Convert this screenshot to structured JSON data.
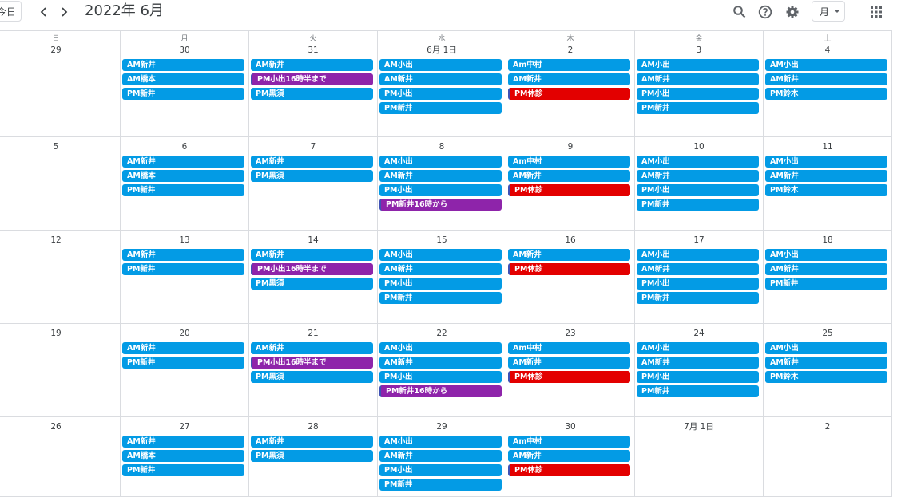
{
  "header": {
    "today_label": "今日",
    "prev_icon": "chevron-left-icon",
    "next_icon": "chevron-right-icon",
    "title": "2022年 6月",
    "view_label": "月",
    "icons": [
      "search-icon",
      "help-icon",
      "settings-icon",
      "apps-grid-icon"
    ]
  },
  "colors": {
    "blue": "#039be5",
    "purple": "#8e24aa",
    "red": "#e30000",
    "border": "#dadce0"
  },
  "weekdays": [
    "日",
    "月",
    "火",
    "水",
    "木",
    "金",
    "土"
  ],
  "weeks": [
    [
      {
        "date": "29",
        "events": []
      },
      {
        "date": "30",
        "events": [
          {
            "t": "AM新井",
            "c": "blue"
          },
          {
            "t": "AM橋本",
            "c": "blue"
          },
          {
            "t": "PM新井",
            "c": "blue"
          }
        ]
      },
      {
        "date": "31",
        "events": [
          {
            "t": "AM新井",
            "c": "blue"
          },
          {
            "t": "PM小出16時半まで",
            "c": "purple"
          },
          {
            "t": "PM黒須",
            "c": "blue"
          }
        ]
      },
      {
        "date": "6月 1日",
        "events": [
          {
            "t": "AM小出",
            "c": "blue"
          },
          {
            "t": "AM新井",
            "c": "blue"
          },
          {
            "t": "PM小出",
            "c": "blue"
          },
          {
            "t": "PM新井",
            "c": "blue"
          }
        ]
      },
      {
        "date": "2",
        "events": [
          {
            "t": "Am中村",
            "c": "blue"
          },
          {
            "t": "AM新井",
            "c": "blue"
          },
          {
            "t": "PM休診",
            "c": "red"
          }
        ]
      },
      {
        "date": "3",
        "events": [
          {
            "t": "AM小出",
            "c": "blue"
          },
          {
            "t": "AM新井",
            "c": "blue"
          },
          {
            "t": "PM小出",
            "c": "blue"
          },
          {
            "t": "PM新井",
            "c": "blue"
          }
        ]
      },
      {
        "date": "4",
        "events": [
          {
            "t": "AM小出",
            "c": "blue"
          },
          {
            "t": "AM新井",
            "c": "blue"
          },
          {
            "t": "PM鈴木",
            "c": "blue"
          }
        ]
      }
    ],
    [
      {
        "date": "5",
        "events": []
      },
      {
        "date": "6",
        "events": [
          {
            "t": "AM新井",
            "c": "blue"
          },
          {
            "t": "AM橋本",
            "c": "blue"
          },
          {
            "t": "PM新井",
            "c": "blue"
          }
        ]
      },
      {
        "date": "7",
        "events": [
          {
            "t": "AM新井",
            "c": "blue"
          },
          {
            "t": "PM黒須",
            "c": "blue"
          }
        ]
      },
      {
        "date": "8",
        "events": [
          {
            "t": "AM小出",
            "c": "blue"
          },
          {
            "t": "AM新井",
            "c": "blue"
          },
          {
            "t": "PM小出",
            "c": "blue"
          },
          {
            "t": "PM新井16時から",
            "c": "purple"
          }
        ]
      },
      {
        "date": "9",
        "events": [
          {
            "t": "Am中村",
            "c": "blue"
          },
          {
            "t": "AM新井",
            "c": "blue"
          },
          {
            "t": "PM休診",
            "c": "red"
          }
        ]
      },
      {
        "date": "10",
        "events": [
          {
            "t": "AM小出",
            "c": "blue"
          },
          {
            "t": "AM新井",
            "c": "blue"
          },
          {
            "t": "PM小出",
            "c": "blue"
          },
          {
            "t": "PM新井",
            "c": "blue"
          }
        ]
      },
      {
        "date": "11",
        "events": [
          {
            "t": "AM小出",
            "c": "blue"
          },
          {
            "t": "AM新井",
            "c": "blue"
          },
          {
            "t": "PM鈴木",
            "c": "blue"
          }
        ]
      }
    ],
    [
      {
        "date": "12",
        "events": []
      },
      {
        "date": "13",
        "events": [
          {
            "t": "AM新井",
            "c": "blue"
          },
          {
            "t": "PM新井",
            "c": "blue"
          }
        ]
      },
      {
        "date": "14",
        "events": [
          {
            "t": "AM新井",
            "c": "blue"
          },
          {
            "t": "PM小出16時半まで",
            "c": "purple"
          },
          {
            "t": "PM黒須",
            "c": "blue"
          }
        ]
      },
      {
        "date": "15",
        "events": [
          {
            "t": "AM小出",
            "c": "blue"
          },
          {
            "t": "AM新井",
            "c": "blue"
          },
          {
            "t": "PM小出",
            "c": "blue"
          },
          {
            "t": "PM新井",
            "c": "blue"
          }
        ]
      },
      {
        "date": "16",
        "events": [
          {
            "t": "AM新井",
            "c": "blue"
          },
          {
            "t": "PM休診",
            "c": "red"
          }
        ]
      },
      {
        "date": "17",
        "events": [
          {
            "t": "AM小出",
            "c": "blue"
          },
          {
            "t": "AM新井",
            "c": "blue"
          },
          {
            "t": "PM小出",
            "c": "blue"
          },
          {
            "t": "PM新井",
            "c": "blue"
          }
        ]
      },
      {
        "date": "18",
        "events": [
          {
            "t": "AM小出",
            "c": "blue"
          },
          {
            "t": "AM新井",
            "c": "blue"
          },
          {
            "t": "PM新井",
            "c": "blue"
          }
        ]
      }
    ],
    [
      {
        "date": "19",
        "events": []
      },
      {
        "date": "20",
        "events": [
          {
            "t": "AM新井",
            "c": "blue"
          },
          {
            "t": "PM新井",
            "c": "blue"
          }
        ]
      },
      {
        "date": "21",
        "events": [
          {
            "t": "AM新井",
            "c": "blue"
          },
          {
            "t": "PM小出16時半まで",
            "c": "purple"
          },
          {
            "t": "PM黒須",
            "c": "blue"
          }
        ]
      },
      {
        "date": "22",
        "events": [
          {
            "t": "AM小出",
            "c": "blue"
          },
          {
            "t": "AM新井",
            "c": "blue"
          },
          {
            "t": "PM小出",
            "c": "blue"
          },
          {
            "t": "PM新井16時から",
            "c": "purple"
          }
        ]
      },
      {
        "date": "23",
        "events": [
          {
            "t": "Am中村",
            "c": "blue"
          },
          {
            "t": "AM新井",
            "c": "blue"
          },
          {
            "t": "PM休診",
            "c": "red"
          }
        ]
      },
      {
        "date": "24",
        "events": [
          {
            "t": "AM小出",
            "c": "blue"
          },
          {
            "t": "AM新井",
            "c": "blue"
          },
          {
            "t": "PM小出",
            "c": "blue"
          },
          {
            "t": "PM新井",
            "c": "blue"
          }
        ]
      },
      {
        "date": "25",
        "events": [
          {
            "t": "AM小出",
            "c": "blue"
          },
          {
            "t": "AM新井",
            "c": "blue"
          },
          {
            "t": "PM鈴木",
            "c": "blue"
          }
        ]
      }
    ],
    [
      {
        "date": "26",
        "events": []
      },
      {
        "date": "27",
        "events": [
          {
            "t": "AM新井",
            "c": "blue"
          },
          {
            "t": "AM橋本",
            "c": "blue"
          },
          {
            "t": "PM新井",
            "c": "blue"
          }
        ]
      },
      {
        "date": "28",
        "events": [
          {
            "t": "AM新井",
            "c": "blue"
          },
          {
            "t": "PM黒須",
            "c": "blue"
          }
        ]
      },
      {
        "date": "29",
        "events": [
          {
            "t": "AM小出",
            "c": "blue"
          },
          {
            "t": "AM新井",
            "c": "blue"
          },
          {
            "t": "PM小出",
            "c": "blue"
          },
          {
            "t": "PM新井",
            "c": "blue"
          }
        ]
      },
      {
        "date": "30",
        "events": [
          {
            "t": "Am中村",
            "c": "blue"
          },
          {
            "t": "AM新井",
            "c": "blue"
          },
          {
            "t": "PM休診",
            "c": "red"
          }
        ]
      },
      {
        "date": "7月 1日",
        "events": []
      },
      {
        "date": "2",
        "events": []
      }
    ]
  ]
}
